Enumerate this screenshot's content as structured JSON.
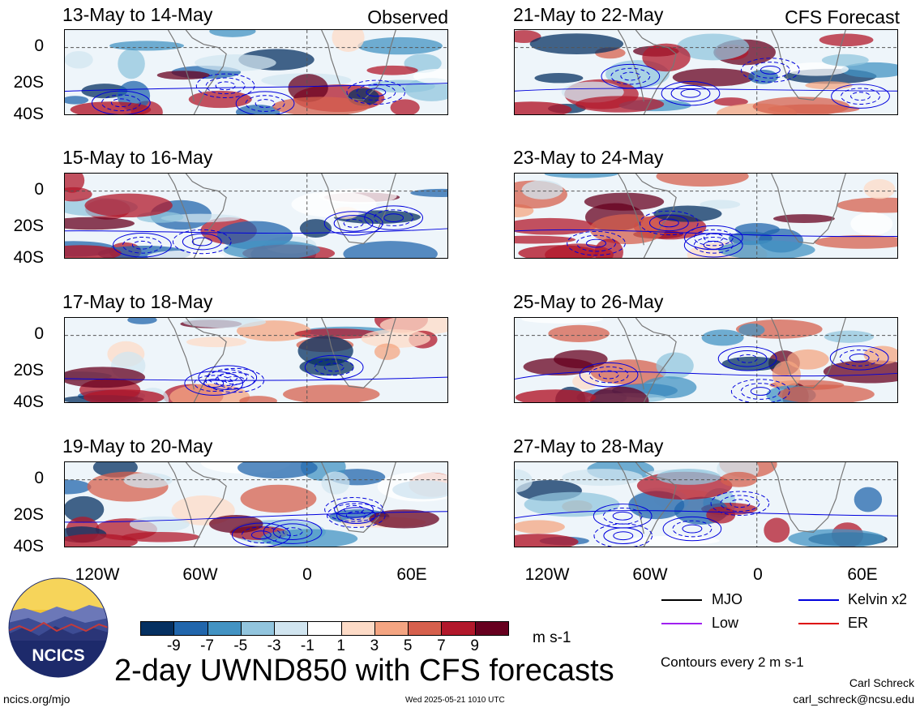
{
  "panels": [
    {
      "title": "13-May to 14-May",
      "tag": "Observed"
    },
    {
      "title": "15-May to 16-May",
      "tag": ""
    },
    {
      "title": "17-May to 18-May",
      "tag": ""
    },
    {
      "title": "19-May to 20-May",
      "tag": ""
    },
    {
      "title": "21-May to 22-May",
      "tag": "CFS Forecast"
    },
    {
      "title": "23-May to 24-May",
      "tag": ""
    },
    {
      "title": "25-May to 26-May",
      "tag": ""
    },
    {
      "title": "27-May to 28-May",
      "tag": ""
    }
  ],
  "y_ticks": [
    "0",
    "20S",
    "40S"
  ],
  "x_ticks": [
    "120W",
    "60W",
    "0",
    "60E"
  ],
  "colorbar": {
    "labels": [
      "-9",
      "-7",
      "-5",
      "-3",
      "-1",
      "1",
      "3",
      "5",
      "7",
      "9"
    ],
    "units": "m s-1",
    "colors": [
      "#053061",
      "#2166ac",
      "#4393c3",
      "#92c5de",
      "#d1e5f0",
      "#ffffff",
      "#fddbc7",
      "#f4a582",
      "#d6604d",
      "#b2182b",
      "#67001f"
    ]
  },
  "legend": {
    "items": [
      {
        "label": "MJO",
        "color": "#000000"
      },
      {
        "label": "Kelvin x2",
        "color": "#0000dd"
      },
      {
        "label": "Low",
        "color": "#a020f0"
      },
      {
        "label": "ER",
        "color": "#dd0000"
      }
    ],
    "contours_note": "Contours every 2 m s-1"
  },
  "main_title": "2-day UWND850 with CFS forecasts",
  "logo_text": "NCICS",
  "footer": {
    "url": "ncics.org/mjo",
    "timestamp": "Wed 2025-05-21 1010 UTC",
    "author": "Carl Schreck",
    "email": "carl_schreck@ncsu.edu"
  }
}
